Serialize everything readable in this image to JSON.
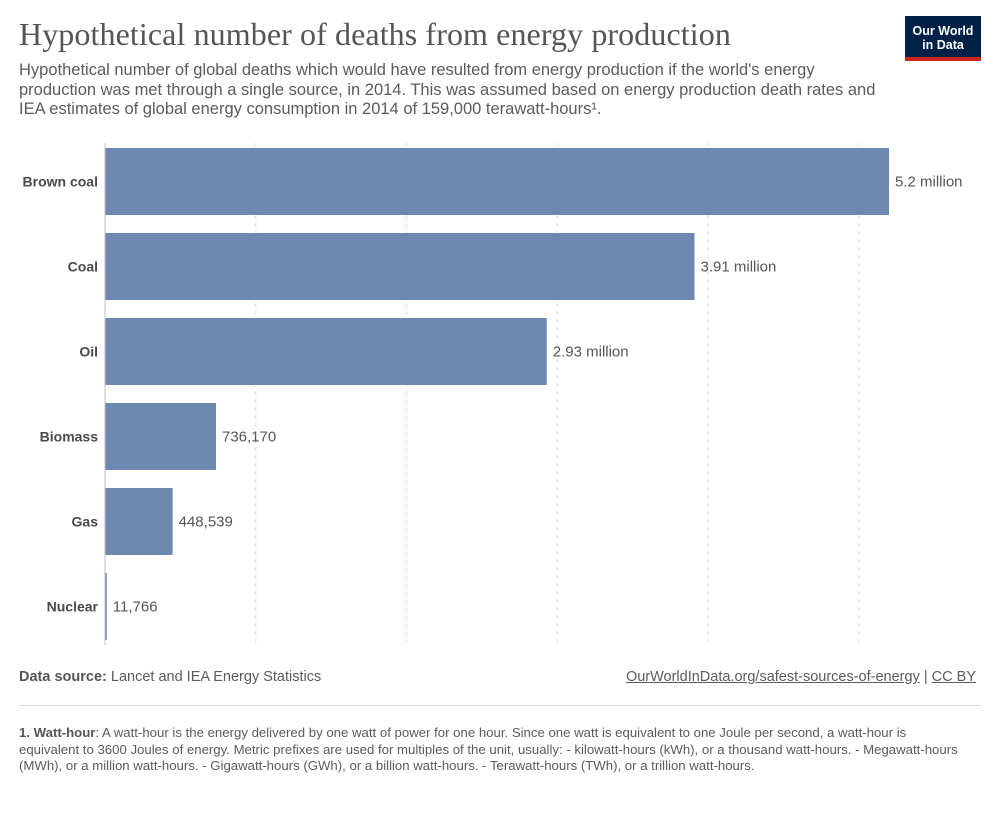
{
  "header": {
    "title": "Hypothetical number of deaths from energy production",
    "subtitle": "Hypothetical number of global deaths which would have resulted from energy production if the world's energy production was met through a single source, in 2014. This was assumed based on energy production death rates and IEA estimates of global energy consumption in 2014 of 159,000 terawatt-hours¹.",
    "logo_line1": "Our World",
    "logo_line2": "in Data"
  },
  "chart_data": {
    "type": "bar",
    "orientation": "horizontal",
    "categories": [
      "Brown coal",
      "Coal",
      "Oil",
      "Biomass",
      "Gas",
      "Nuclear"
    ],
    "values": [
      5200000,
      3910000,
      2930000,
      736170,
      448539,
      11766
    ],
    "value_labels": [
      "5.2 million",
      "3.91 million",
      "2.93 million",
      "736,170",
      "448,539",
      "11,766"
    ],
    "title": "Hypothetical number of deaths from energy production",
    "xlabel": "",
    "ylabel": "",
    "xlim": [
      0,
      5200000
    ],
    "gridlines": [
      1000000,
      2000000,
      3000000,
      4000000,
      5000000
    ],
    "grid": true,
    "bar_color": "#6d88b1"
  },
  "footer": {
    "source_label": "Data source:",
    "source_text": "Lancet and IEA Energy Statistics",
    "link_text": "OurWorldInData.org/safest-sources-of-energy",
    "separator": "|",
    "license": "CC BY"
  },
  "footnote": {
    "term": "1. Watt-hour",
    "text": ": A watt-hour is the energy delivered by one watt of power for one hour. Since one watt is equivalent to one Joule per second, a watt-hour is equivalent to 3600 Joules of energy. Metric prefixes are used for multiples of the unit, usually: - kilowatt-hours (kWh), or a thousand watt-hours. - Megawatt-hours (MWh), or a million watt-hours. - Gigawatt-hours (GWh), or a billion watt-hours. - Terawatt-hours (TWh), or a trillion watt-hours."
  },
  "colors": {
    "logo_bg": "#002147",
    "logo_accent": "#ce261e"
  }
}
